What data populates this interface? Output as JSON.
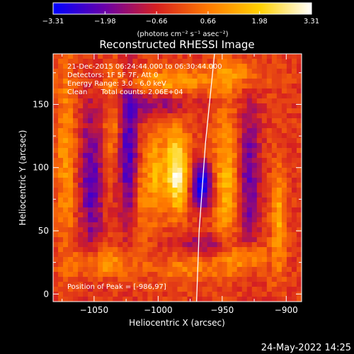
{
  "chart_data": {
    "type": "heatmap",
    "title": "Reconstructed RHESSI Image",
    "xlabel": "Heliocentric X (arcsec)",
    "ylabel": "Heliocentric Y (arcsec)",
    "xlim": [
      -1082,
      -888
    ],
    "ylim": [
      -6,
      190
    ],
    "xticks": [
      -1050,
      -1000,
      -950,
      -900
    ],
    "xtick_labels": [
      "−1050",
      "−1000",
      "−950",
      "−900"
    ],
    "yticks": [
      0,
      50,
      100,
      150
    ],
    "ytick_labels": [
      "0",
      "50",
      "100",
      "150"
    ],
    "grid": false,
    "colorbar": {
      "min": -3.31,
      "max": 3.31,
      "ticks": [
        -3.31,
        -1.98,
        -0.66,
        0.66,
        1.98,
        3.31
      ],
      "tick_labels": [
        "−3.31",
        "−1.98",
        "−0.66",
        "0.66",
        "1.98",
        "3.31"
      ],
      "unit_label": "(photons cm⁻² s⁻¹ asec⁻²)",
      "colors": [
        "#0000ff",
        "#6a00a8",
        "#d62020",
        "#ff7a00",
        "#ffd000",
        "#ffffff"
      ]
    },
    "annotations": [
      "21-Dec-2015 06:24:44.000 to 06:30:44.000",
      "Detectors: 1F 5F 7F, Att 0",
      "Energy Range: 3.0 - 6.0 keV",
      "Clean      Total counts: 2.06E+04"
    ],
    "peak_label": "Position of Peak = [-986,97]",
    "peak": {
      "x": -986,
      "y": 97,
      "value": 3.31
    },
    "limb_curve": [
      [
        -970,
        -6
      ],
      [
        -968,
        50
      ],
      [
        -963,
        120
      ],
      [
        -956,
        190
      ]
    ],
    "grid_cells": 50,
    "features": [
      {
        "x": -986,
        "y": 97,
        "sx": 7,
        "sy": 22,
        "amp": 3.4
      },
      {
        "x": -1003,
        "y": 95,
        "sx": 4,
        "sy": 25,
        "amp": 1.6
      },
      {
        "x": -1013,
        "y": 80,
        "sx": 4,
        "sy": 30,
        "amp": 1.3
      },
      {
        "x": -966,
        "y": 86,
        "sx": 6,
        "sy": 12,
        "amp": -3.2
      },
      {
        "x": -1023,
        "y": 112,
        "sx": 6,
        "sy": 38,
        "amp": -2.2
      },
      {
        "x": -1052,
        "y": 90,
        "sx": 6,
        "sy": 40,
        "amp": -1.9
      },
      {
        "x": -947,
        "y": 90,
        "sx": 7,
        "sy": 40,
        "amp": 1.8
      },
      {
        "x": -929,
        "y": 90,
        "sx": 6,
        "sy": 45,
        "amp": -1.7
      },
      {
        "x": -1072,
        "y": 110,
        "sx": 5,
        "sy": 55,
        "amp": 1.4
      },
      {
        "x": -1035,
        "y": 135,
        "sx": 5,
        "sy": 28,
        "amp": 1.1
      },
      {
        "x": -993,
        "y": 168,
        "sx": 28,
        "sy": 7,
        "amp": 1.5
      },
      {
        "x": -940,
        "y": 175,
        "sx": 14,
        "sy": 8,
        "amp": 1.3
      },
      {
        "x": -1042,
        "y": 25,
        "sx": 16,
        "sy": 8,
        "amp": 1.5
      },
      {
        "x": -975,
        "y": 20,
        "sx": 18,
        "sy": 8,
        "amp": 1.0
      },
      {
        "x": -930,
        "y": 30,
        "sx": 10,
        "sy": 10,
        "amp": 1.6
      },
      {
        "x": -906,
        "y": 60,
        "sx": 4,
        "sy": 30,
        "amp": 1.6
      },
      {
        "x": -1005,
        "y": 150,
        "sx": 22,
        "sy": 6,
        "amp": -1.3
      },
      {
        "x": -960,
        "y": 40,
        "sx": 20,
        "sy": 6,
        "amp": -1.2
      }
    ]
  },
  "footer": {
    "timestamp": "24-May-2022 14:25"
  }
}
